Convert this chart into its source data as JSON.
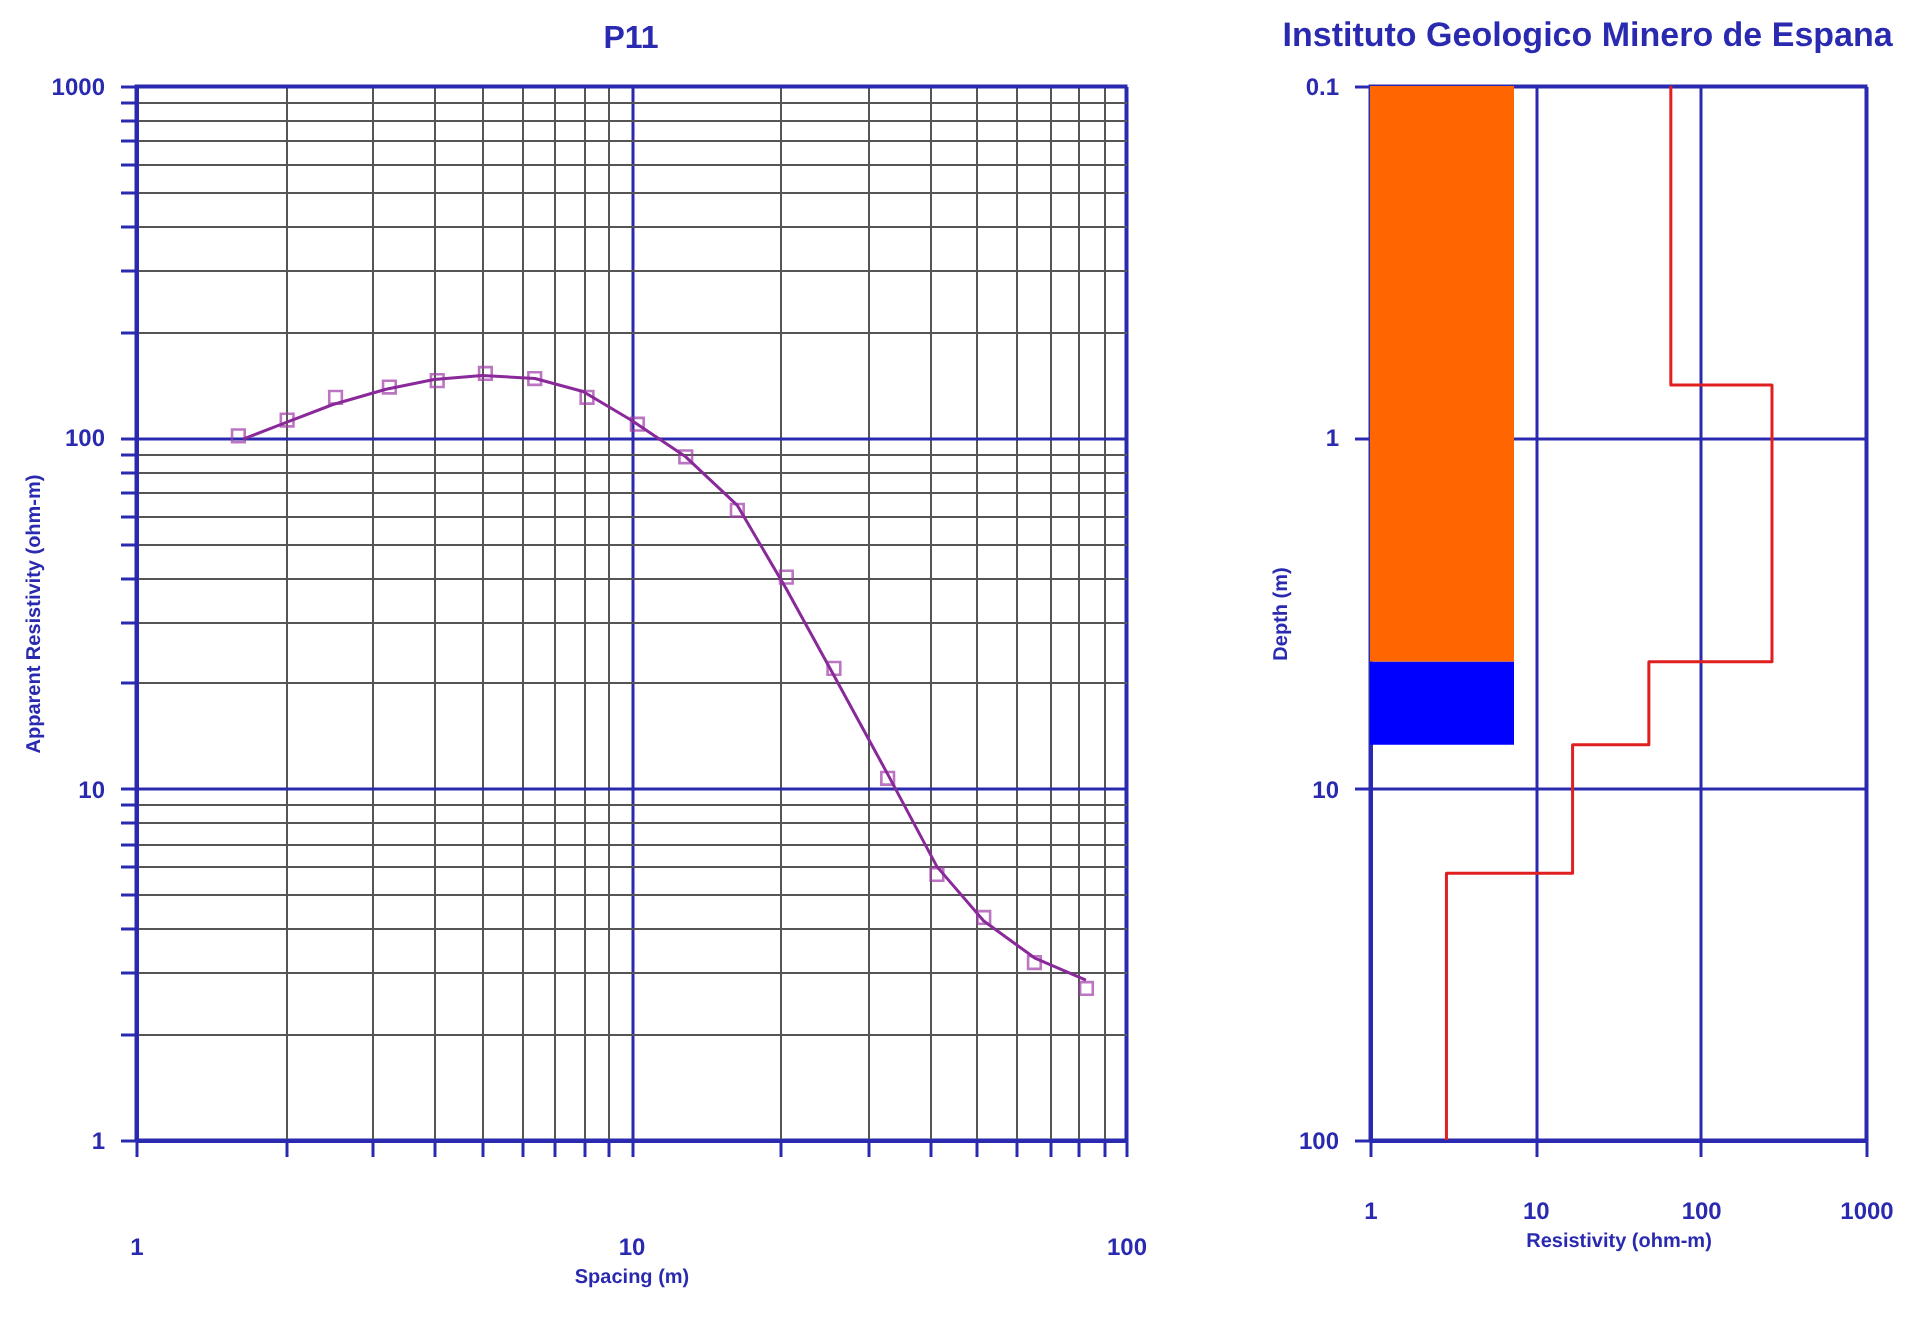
{
  "chart_data": [
    {
      "type": "scatter",
      "title": "P11",
      "xlabel": "Spacing (m)",
      "ylabel": "Apparent Resistivity (ohm-m)",
      "xlim": [
        1,
        100
      ],
      "ylim": [
        1,
        1000
      ],
      "xticks": [
        1,
        {
          "value": 2,
          "label": null
        },
        {
          "value": 3,
          "label": null
        },
        {
          "value": 4,
          "label": null
        },
        {
          "value": 5,
          "label": null
        },
        {
          "value": 6,
          "label": null
        },
        {
          "value": 7,
          "label": null
        },
        {
          "value": 8,
          "label": null
        },
        {
          "value": 9,
          "label": null
        },
        10,
        {
          "value": 20,
          "label": null
        },
        {
          "value": 30,
          "label": null
        },
        {
          "value": 40,
          "label": null
        },
        {
          "value": 50,
          "label": null
        },
        {
          "value": 60,
          "label": null
        },
        {
          "value": 70,
          "label": null
        },
        {
          "value": 80,
          "label": null
        },
        {
          "value": 90,
          "label": null
        },
        100
      ],
      "yticks": [
        1,
        {
          "value": 2,
          "label": null
        },
        {
          "value": 3,
          "label": null
        },
        {
          "value": 4,
          "label": null
        },
        {
          "value": 5,
          "label": null
        },
        {
          "value": 6,
          "label": null
        },
        {
          "value": 7,
          "label": null
        },
        {
          "value": 8,
          "label": null
        },
        {
          "value": 9,
          "label": null
        },
        10,
        {
          "value": 20,
          "label": null
        },
        {
          "value": 30,
          "label": null
        },
        {
          "value": 40,
          "label": null
        },
        {
          "value": 50,
          "label": null
        },
        {
          "value": 60,
          "label": null
        },
        {
          "value": 70,
          "label": null
        },
        {
          "value": 80,
          "label": null
        },
        {
          "value": 90,
          "label": null
        },
        100,
        {
          "value": 200,
          "label": null
        },
        {
          "value": 300,
          "label": null
        },
        {
          "value": 400,
          "label": null
        },
        {
          "value": 500,
          "label": null
        },
        {
          "value": 600,
          "label": null
        },
        {
          "value": 700,
          "label": null
        },
        {
          "value": 800,
          "label": null
        },
        {
          "value": 900,
          "label": null
        },
        1000
      ],
      "log": "xy",
      "grid": true,
      "marker": "square",
      "series": [
        {
          "color": "#a03ca8",
          "x": [
            1.61,
            2.02,
            2.53,
            3.25,
            4.06,
            5.08,
            6.39,
            8.15,
            10.3,
            12.9,
            16.4,
            20.6,
            25.7,
            33,
            41.5,
            51.6,
            65.3,
            83.2
          ],
          "values": [
            101,
            112,
            130,
            139,
            145,
            152,
            147,
            130,
            109,
            88,
            62,
            40,
            22,
            10.7,
            5.7,
            4.3,
            3.2,
            2.7
          ]
        },
        {
          "type": "line",
          "color": "#8a2a9a",
          "marker": "none",
          "x": [
            1.65,
            2,
            2.5,
            3.2,
            4,
            5,
            6.4,
            8,
            10,
            12.9,
            16.4,
            20.6,
            25.7,
            33,
            41.5,
            51.6,
            65.3,
            83
          ],
          "values": [
            99,
            110,
            124,
            137,
            146,
            150,
            147,
            135,
            112,
            88,
            64,
            37,
            21,
            11,
            6,
            4.2,
            3.3,
            2.85
          ]
        }
      ]
    },
    {
      "type": "line",
      "title": "Instituto Geologico Minero de Espana",
      "xlabel": "Resistivity (ohm-m)",
      "ylabel": "Depth (m)",
      "xlim": [
        1,
        1000
      ],
      "ylim": [
        100,
        0.1
      ],
      "xticks": [
        1,
        10,
        100,
        1000
      ],
      "yticks": [
        0.1,
        1,
        10,
        100
      ],
      "log": "xy",
      "grid": true,
      "bands": [
        {
          "axis": "y",
          "from": 0.1,
          "to": 4.35,
          "color": "#ff6600"
        },
        {
          "axis": "y",
          "from": 4.35,
          "to": 7.5,
          "color": "#0000ff"
        }
      ],
      "series": [
        {
          "color": "#e02020",
          "x": [
            66,
            66,
            270,
            270,
            48.6,
            48.6,
            16.8,
            16.8,
            2.9,
            2.9
          ],
          "values": [
            0.1,
            0.71,
            0.71,
            4.35,
            4.35,
            7.5,
            7.5,
            17.4,
            17.4,
            100
          ]
        }
      ]
    }
  ]
}
